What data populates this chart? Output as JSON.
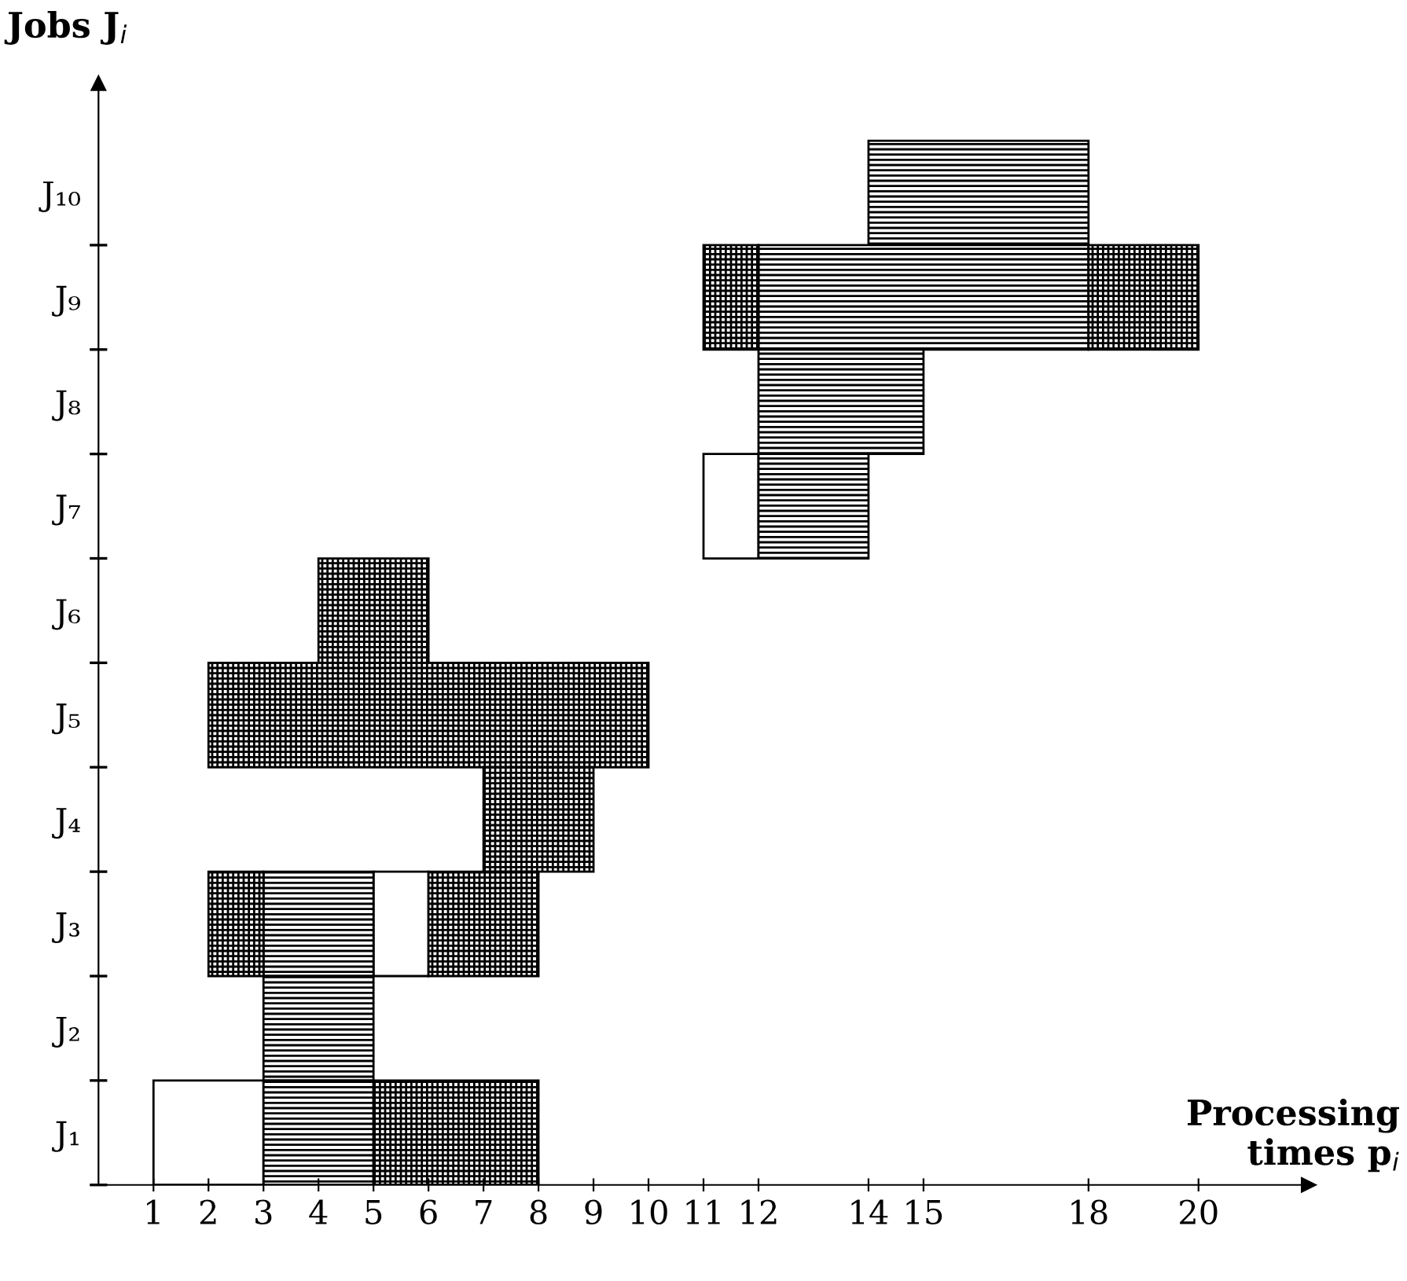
{
  "chart_data": {
    "type": "bar",
    "orientation": "horizontal",
    "ylabel": "Jobs J$_{i}$",
    "xlabel": "Processing\ntimes p$_{i}$",
    "categories": [
      "J₁₀",
      "J₉",
      "J₈",
      "J₇",
      "J₆",
      "J₅",
      "J₄",
      "J₃",
      "J₂",
      "J₁"
    ],
    "xlim": [
      0,
      22
    ],
    "xticks": [
      1,
      2,
      3,
      4,
      5,
      6,
      7,
      8,
      9,
      10,
      11,
      12,
      14,
      15,
      18,
      20
    ],
    "series": [
      {
        "color": "#ffffff",
        "base": [
          null,
          null,
          null,
          11,
          null,
          null,
          null,
          5,
          null,
          1
        ],
        "values": [
          null,
          null,
          null,
          1,
          null,
          null,
          null,
          1,
          null,
          2
        ]
      },
      {
        "color": "#000000",
        "base": [
          14,
          12,
          12,
          12,
          null,
          null,
          null,
          3,
          3,
          3
        ],
        "values": [
          4,
          6,
          3,
          2,
          null,
          null,
          null,
          2,
          2,
          2
        ]
      },
      {
        "color": "#000000",
        "base": [
          null,
          11,
          null,
          null,
          4,
          2,
          7,
          2,
          null,
          5
        ],
        "values": [
          null,
          1,
          null,
          null,
          2,
          8,
          2,
          1,
          null,
          3
        ]
      },
      {
        "color": "#000000",
        "base": [
          null,
          18,
          null,
          null,
          null,
          null,
          null,
          6,
          null,
          null
        ],
        "values": [
          null,
          2,
          null,
          null,
          null,
          null,
          null,
          2,
          null,
          null
        ]
      }
    ],
    "grid": false,
    "legend": false
  }
}
